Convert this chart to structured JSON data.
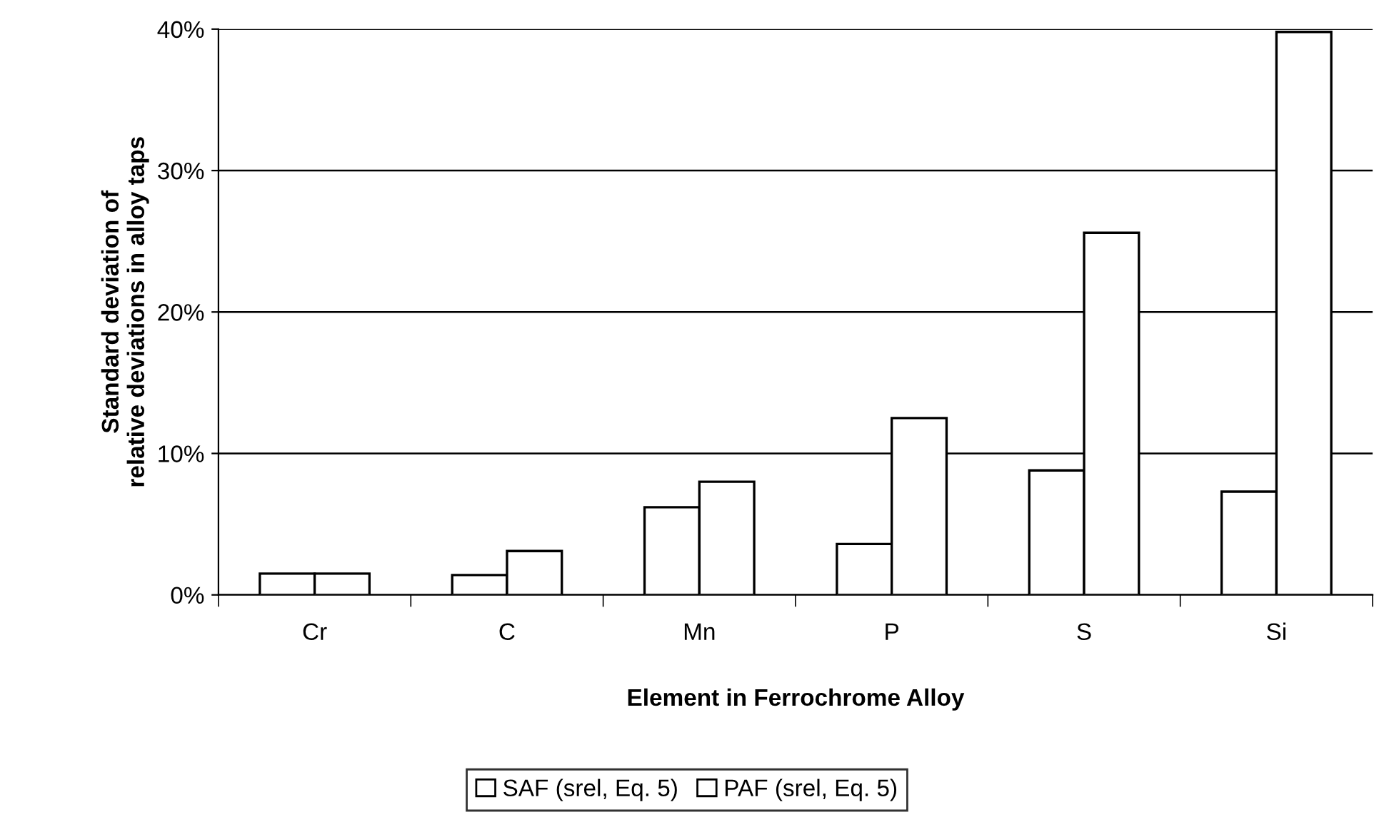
{
  "chart_data": {
    "type": "bar",
    "xlabel": "Element in Ferrochrome Alloy",
    "ylabel": "Standard deviation of\nrelative deviations in alloy taps",
    "categories": [
      "Cr",
      "C",
      "Mn",
      "P",
      "S",
      "Si"
    ],
    "series": [
      {
        "name": "SAF (srel, Eq. 5)",
        "color": "#ffffff",
        "values": [
          1.5,
          1.4,
          6.2,
          3.6,
          8.8,
          7.3
        ]
      },
      {
        "name": "PAF (srel, Eq. 5)",
        "color": "#ffffff",
        "values": [
          1.5,
          3.1,
          8.0,
          12.5,
          25.6,
          39.8
        ]
      }
    ],
    "ylim": [
      0,
      40
    ],
    "yticks": [
      {
        "value": 0,
        "label": "0%"
      },
      {
        "value": 10,
        "label": "10%"
      },
      {
        "value": 20,
        "label": "20%"
      },
      {
        "value": 30,
        "label": "30%"
      },
      {
        "value": 40,
        "label": "40%"
      }
    ],
    "grid": "y",
    "legend": "bottom"
  }
}
